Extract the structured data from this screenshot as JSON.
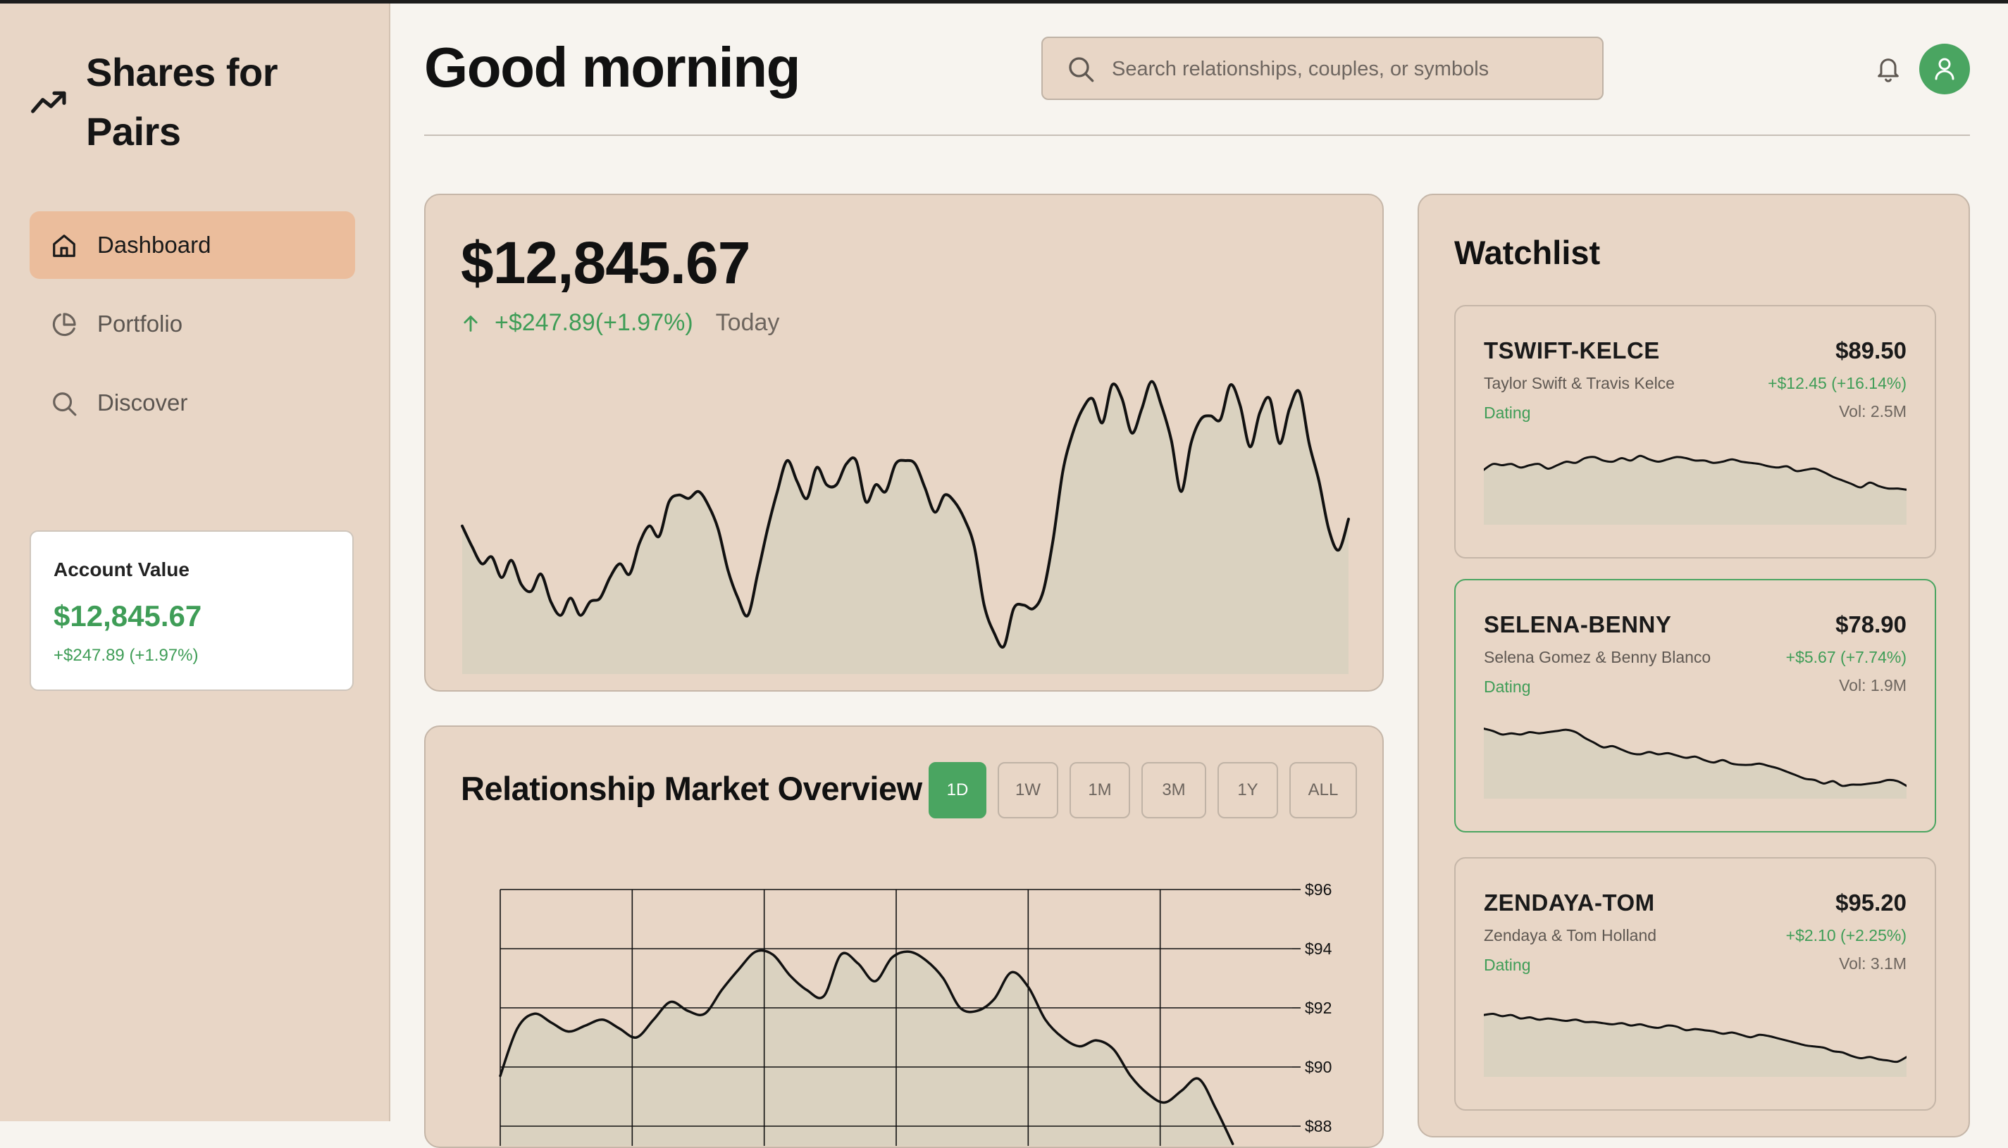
{
  "brand": {
    "name": "Shares for Pairs",
    "icon": "trending-up-icon"
  },
  "sidebar": {
    "items": [
      {
        "label": "Dashboard",
        "icon": "home-icon",
        "active": true
      },
      {
        "label": "Portfolio",
        "icon": "pie-chart-icon",
        "active": false
      },
      {
        "label": "Discover",
        "icon": "search-icon",
        "active": false
      }
    ],
    "account": {
      "label": "Account Value",
      "value": "$12,845.67",
      "change": "+$247.89 (+1.97%)"
    }
  },
  "header": {
    "greeting": "Good morning",
    "search": {
      "placeholder": "Search relationships, couples, or symbols",
      "value": ""
    },
    "icons": [
      "bell-icon",
      "user-icon"
    ]
  },
  "portfolio": {
    "value": "$12,845.67",
    "change": "+$247.89(+1.97%)",
    "period": "Today"
  },
  "market": {
    "title": "Relationship Market Overview",
    "ranges": [
      "1D",
      "1W",
      "1M",
      "3M",
      "1Y",
      "ALL"
    ],
    "active_range": "1D"
  },
  "watchlist": {
    "title": "Watchlist",
    "items": [
      {
        "symbol": "TSWIFT-KELCE",
        "price": "$89.50",
        "names": "Taylor Swift & Travis Kelce",
        "change": "+$12.45 (+16.14%)",
        "category": "Dating",
        "volume": "Vol: 2.5M",
        "selected": false
      },
      {
        "symbol": "SELENA-BENNY",
        "price": "$78.90",
        "names": "Selena Gomez & Benny Blanco",
        "change": "+$5.67 (+7.74%)",
        "category": "Dating",
        "volume": "Vol: 1.9M",
        "selected": true
      },
      {
        "symbol": "ZENDAYA-TOM",
        "price": "$95.20",
        "names": "Zendaya & Tom Holland",
        "change": "+$2.10 (+2.25%)",
        "category": "Dating",
        "volume": "Vol: 3.1M",
        "selected": false
      }
    ]
  },
  "colors": {
    "accent_green": "#4aa561",
    "positive": "#3f9d57",
    "panel": "#e8d6c6",
    "active_nav": "#ebbd9c",
    "background": "#f7f4ef"
  },
  "chart_data": [
    {
      "type": "area",
      "y": [
        61,
        55,
        50,
        52,
        46,
        51,
        44,
        42,
        47,
        39,
        35,
        40,
        35,
        39,
        40,
        46,
        50,
        47,
        56,
        61,
        58,
        68,
        70,
        69,
        71,
        67,
        60,
        48,
        40,
        35,
        47,
        60,
        71,
        80,
        74,
        69,
        78,
        73,
        73,
        79,
        80,
        68,
        73,
        71,
        79,
        80,
        79,
        72,
        65,
        70,
        68,
        63,
        55,
        38,
        30,
        26,
        37,
        38,
        37,
        42,
        57,
        77,
        88,
        95,
        98,
        91,
        102,
        98,
        88,
        95,
        103,
        96,
        86,
        71,
        85,
        92,
        93,
        92,
        102,
        96,
        84,
        94,
        98,
        85,
        95,
        100,
        85,
        74,
        60,
        54,
        63
      ]
    },
    {
      "type": "area",
      "series": [
        {
          "values": [
            89.7,
            91.3,
            91.8,
            91.5,
            91.2,
            91.4,
            91.6,
            91.3,
            91.0,
            91.6,
            92.2,
            91.9,
            91.8,
            92.6,
            93.3,
            93.9,
            93.8,
            93.1,
            92.6,
            92.4,
            93.8,
            93.5,
            92.9,
            93.7,
            93.9,
            93.6,
            93.0,
            92.0,
            91.9,
            92.3,
            93.2,
            92.7,
            91.6,
            91.0,
            90.7,
            90.9,
            90.6,
            89.7,
            89.1,
            88.8,
            89.2,
            89.6,
            88.6,
            87.4
          ]
        }
      ],
      "ylim": [
        87.5,
        96
      ],
      "yticks": [
        "$96",
        "$94",
        "$92",
        "$90",
        "$88"
      ]
    },
    {
      "type": "area",
      "series": [
        {
          "values": [
            47,
            52,
            51,
            52,
            49,
            51,
            52,
            48,
            51,
            54,
            53,
            57,
            58,
            55,
            54,
            57,
            55,
            59,
            56,
            54,
            56,
            58,
            57,
            55,
            55,
            53,
            54,
            56,
            54,
            53,
            52,
            50,
            49,
            50,
            46,
            47,
            48,
            45,
            41,
            38,
            35,
            32,
            36,
            33,
            31,
            31,
            30
          ]
        },
        {
          "values": [
            60,
            58,
            55,
            56,
            55,
            57,
            56,
            57,
            58,
            59,
            57,
            52,
            48,
            44,
            45,
            42,
            39,
            38,
            40,
            38,
            39,
            37,
            35,
            36,
            33,
            31,
            33,
            30,
            29,
            29,
            30,
            28,
            26,
            23,
            20,
            17,
            16,
            13,
            15,
            11,
            12,
            12,
            13,
            14,
            16,
            15,
            11
          ]
        },
        {
          "values": [
            53,
            54,
            52,
            53,
            50,
            51,
            49,
            50,
            49,
            48,
            49,
            47,
            47,
            46,
            45,
            46,
            44,
            45,
            43,
            42,
            44,
            43,
            40,
            41,
            40,
            39,
            37,
            38,
            36,
            34,
            36,
            35,
            33,
            31,
            29,
            27,
            26,
            25,
            22,
            21,
            18,
            16,
            17,
            15,
            14,
            13,
            17
          ]
        }
      ]
    }
  ]
}
